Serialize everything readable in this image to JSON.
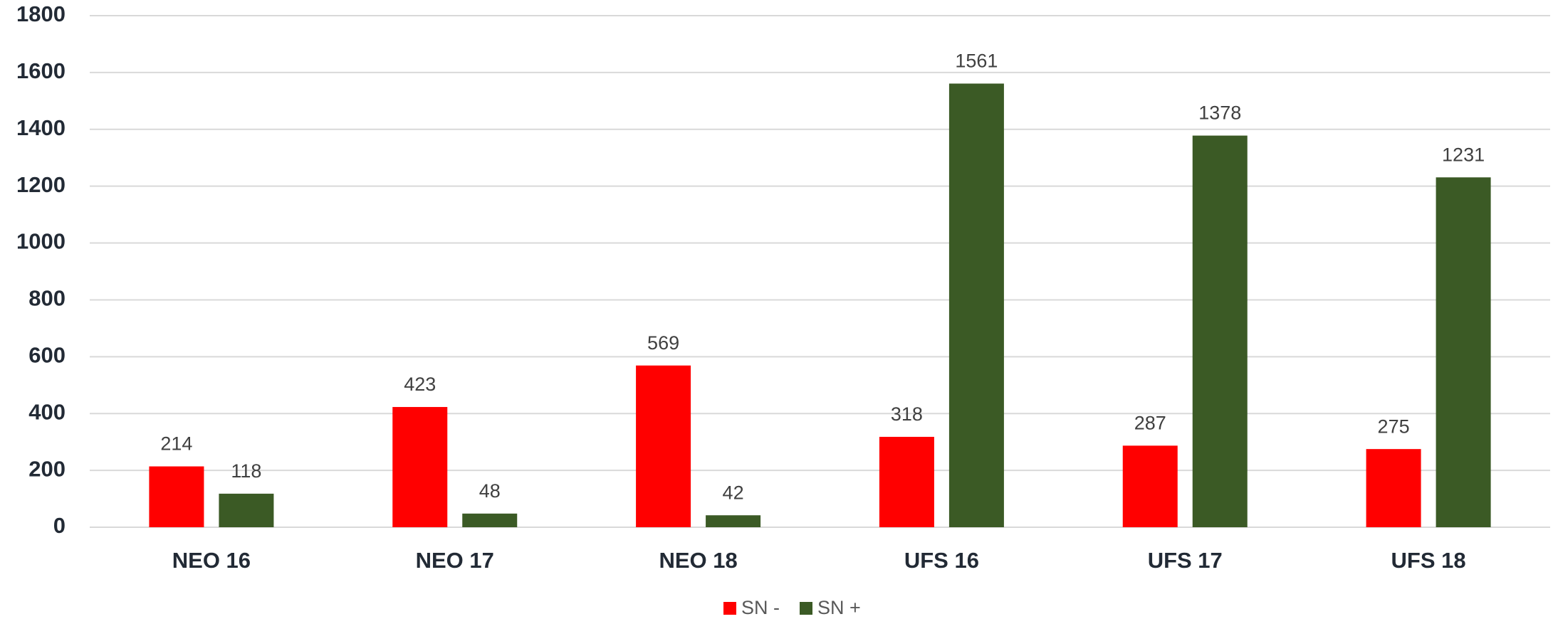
{
  "chart_data": {
    "type": "bar",
    "categories": [
      "NEO 16",
      "NEO 17",
      "NEO 18",
      "UFS 16",
      "UFS 17",
      "UFS 18"
    ],
    "series": [
      {
        "name": "SN -",
        "color": "#ff0000",
        "values": [
          214,
          423,
          569,
          318,
          287,
          275
        ]
      },
      {
        "name": "SN +",
        "color": "#3b5a25",
        "values": [
          118,
          48,
          42,
          1561,
          1378,
          1231
        ]
      }
    ],
    "ylim": [
      0,
      1800
    ],
    "yticks": [
      0,
      200,
      400,
      600,
      800,
      1000,
      1200,
      1400,
      1600,
      1800
    ],
    "grid": true,
    "legend": "bottom"
  }
}
